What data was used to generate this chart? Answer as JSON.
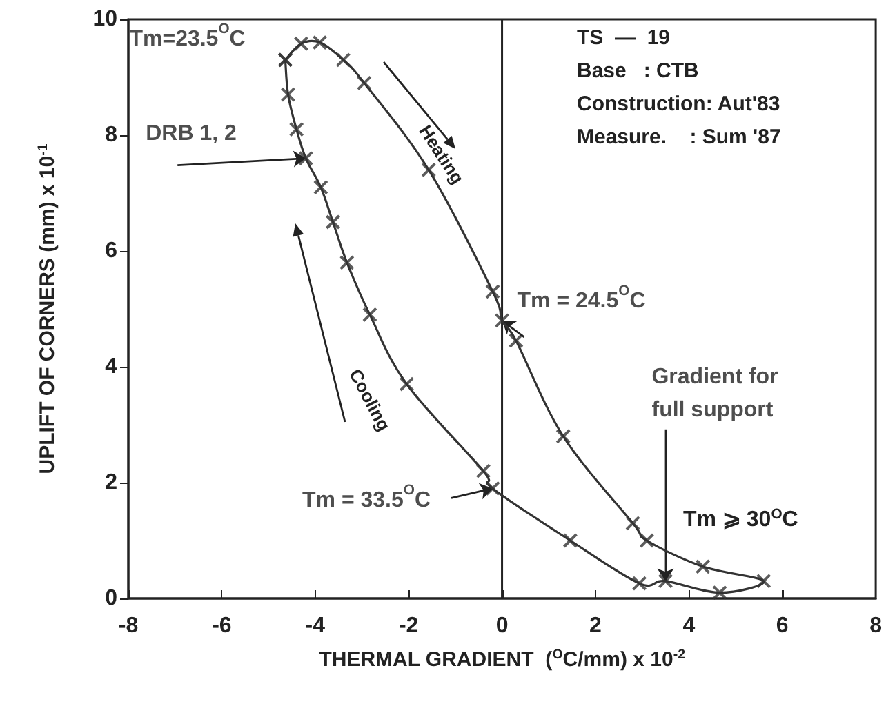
{
  "chart_data": {
    "type": "scatter",
    "xlabel": "THERMAL GRADIENT  ($^{O}$C/mm) x 10$^{-2}$",
    "ylabel": "UPLIFT OF CORNERS (mm) x 10$^{-1}$",
    "xlim": [
      -8,
      8
    ],
    "xticks": [
      -8,
      -6,
      -4,
      -2,
      0,
      2,
      4,
      6,
      8
    ],
    "ylim": [
      0,
      10
    ],
    "yticks": [
      0,
      2,
      4,
      6,
      8,
      10
    ],
    "marker": "cross",
    "line_style": "solid",
    "series": [
      {
        "color": "#333333",
        "x": [
          -4.64,
          -4.58,
          -4.4,
          -4.2,
          -3.88,
          -3.62,
          -3.32,
          -2.83,
          -2.04,
          -0.4,
          -0.2,
          1.46,
          2.94,
          3.5,
          4.66,
          5.6,
          4.3,
          3.1,
          2.8,
          1.31,
          0.3,
          0,
          -0.2,
          -1.57,
          -2.95,
          -3.4,
          -3.9,
          -4.3,
          -4.64
        ],
        "values": [
          9.3,
          8.7,
          8.1,
          7.6,
          7.1,
          6.5,
          5.8,
          4.9,
          3.7,
          2.2,
          1.9,
          1.0,
          0.26,
          0.3,
          0.1,
          0.3,
          0.55,
          1.0,
          1.3,
          2.8,
          4.45,
          4.8,
          5.3,
          7.4,
          8.9,
          9.3,
          9.6,
          9.58,
          9.3
        ]
      }
    ],
    "ref_lines": [
      {
        "axis": "x",
        "value": 0,
        "color": "#222222",
        "line_style": "solid"
      }
    ],
    "annotations": [
      {
        "text": "Tm=23.5$^{O}$C",
        "x": -4.64,
        "y": 9.3
      },
      {
        "text": "DRB 1, 2",
        "x": -4.2,
        "y": 7.6
      },
      {
        "text": "Tm = 24.5$^{O}$C",
        "x": 0,
        "y": 4.8
      },
      {
        "text": "Tm = 33.5$^{O}$C",
        "x": -0.2,
        "y": 1.9
      },
      {
        "text": "Gradient for\nfull support",
        "x": 3.5,
        "y": 0.3
      },
      "Tm ⩾ 30$^{O}$C",
      "Heating",
      "Cooling",
      "TS  —  19",
      "Base   : CTB",
      "Construction: Aut'83",
      "Measure.    : Sum '87"
    ]
  }
}
